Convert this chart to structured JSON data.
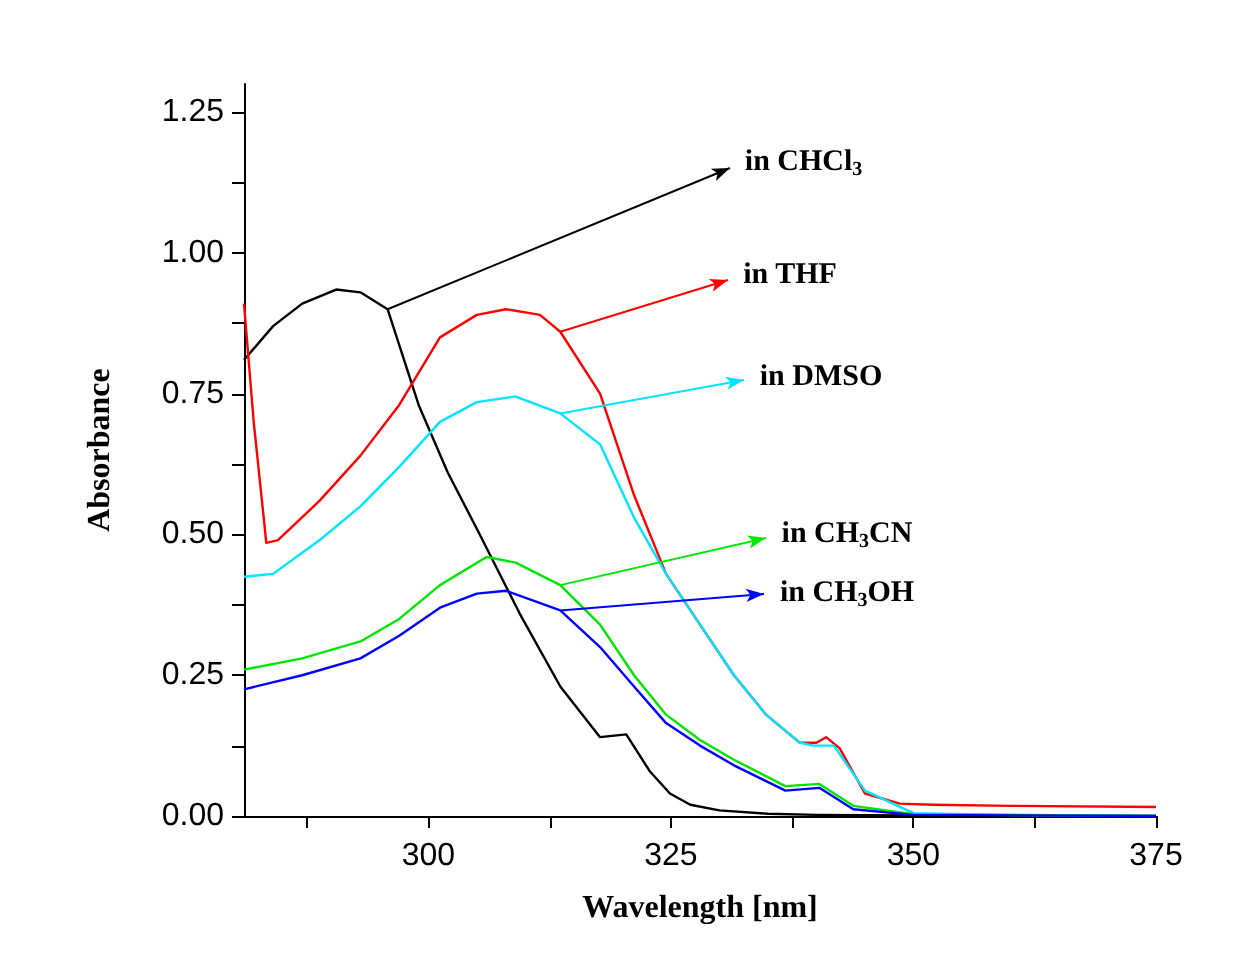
{
  "chart_data": {
    "type": "line",
    "xlabel": "Wavelength [nm]",
    "ylabel": "Absorbance",
    "xlim": [
      281,
      375
    ],
    "xticks": [
      {
        "value": 287.5,
        "label": null
      },
      300,
      {
        "value": 312.5,
        "label": null
      },
      325,
      {
        "value": 337.5,
        "label": null
      },
      350,
      {
        "value": 362.5,
        "label": null
      },
      375
    ],
    "ylim": [
      0,
      1.3
    ],
    "yticks": [
      {
        "value": 0,
        "label": "0.00"
      },
      {
        "value": 0.125,
        "label": null
      },
      {
        "value": 0.25,
        "label": "0.25"
      },
      {
        "value": 0.375,
        "label": null
      },
      {
        "value": 0.5,
        "label": "0.50"
      },
      {
        "value": 0.625,
        "label": null
      },
      {
        "value": 0.75,
        "label": "0.75"
      },
      {
        "value": 0.875,
        "label": null
      },
      {
        "value": 1,
        "label": "1.00"
      },
      {
        "value": 1.125,
        "label": null
      },
      {
        "value": 1.25,
        "label": "1.25"
      }
    ],
    "grid": false,
    "legend": "right",
    "marker": "none",
    "line_style": "solid",
    "series": [
      {
        "name": "in CHCl$_{3}$",
        "color": "#000000",
        "x": [
          281,
          284,
          287,
          290.5,
          293,
          295.8,
          299,
          302,
          305.3,
          309.4,
          313.6,
          317.7,
          320.4,
          322.8,
          324.9,
          327,
          330,
          335,
          340,
          350,
          375
        ],
        "values": [
          0.81,
          0.87,
          0.91,
          0.935,
          0.93,
          0.9,
          0.73,
          0.61,
          0.5,
          0.36,
          0.23,
          0.14,
          0.145,
          0.08,
          0.04,
          0.02,
          0.01,
          0.004,
          0.002,
          0.001,
          0
        ]
      },
      {
        "name": "in THF",
        "color": "#ff0000",
        "x": [
          281,
          282,
          283.3,
          284.5,
          288.8,
          293,
          297,
          301.2,
          305,
          308,
          311.5,
          313.6,
          317.7,
          321.2,
          324.5,
          328,
          331.5,
          334.8,
          338.3,
          340,
          341,
          342.4,
          345,
          348.6,
          352,
          360,
          375
        ],
        "values": [
          0.91,
          0.7,
          0.485,
          0.49,
          0.56,
          0.64,
          0.73,
          0.85,
          0.89,
          0.9,
          0.89,
          0.86,
          0.75,
          0.57,
          0.43,
          0.34,
          0.25,
          0.18,
          0.13,
          0.13,
          0.14,
          0.12,
          0.04,
          0.022,
          0.02,
          0.018,
          0.016
        ]
      },
      {
        "name": "in DMSO",
        "color": "#00e5ff",
        "x": [
          281,
          284,
          288.8,
          293,
          297,
          301.2,
          305,
          309,
          313.6,
          317.7,
          321.2,
          324.5,
          328,
          331.5,
          334.8,
          338.3,
          339.7,
          341.8,
          345,
          350,
          360,
          375
        ],
        "values": [
          0.425,
          0.43,
          0.49,
          0.55,
          0.62,
          0.7,
          0.735,
          0.745,
          0.715,
          0.66,
          0.53,
          0.43,
          0.34,
          0.25,
          0.18,
          0.13,
          0.125,
          0.125,
          0.045,
          0.005,
          0.002,
          0
        ]
      },
      {
        "name": "in CH$_{3}$CN",
        "color": "#00e600",
        "x": [
          281,
          287,
          293,
          297,
          301.2,
          306,
          309,
          313.6,
          317.7,
          321.2,
          324.5,
          328,
          331.5,
          336.8,
          340.3,
          343.8,
          350,
          375
        ],
        "values": [
          0.26,
          0.28,
          0.31,
          0.35,
          0.41,
          0.46,
          0.45,
          0.41,
          0.34,
          0.25,
          0.18,
          0.135,
          0.1,
          0.053,
          0.057,
          0.018,
          0.003,
          0
        ]
      },
      {
        "name": "in CH$_{3}$OH",
        "color": "#0000ff",
        "x": [
          281,
          287,
          293,
          297,
          301.2,
          305,
          308,
          313.6,
          317.7,
          321.2,
          324.5,
          328,
          331.5,
          336.8,
          340.3,
          343.8,
          350,
          375
        ],
        "values": [
          0.225,
          0.25,
          0.28,
          0.32,
          0.37,
          0.395,
          0.4,
          0.365,
          0.3,
          0.23,
          0.165,
          0.125,
          0.09,
          0.045,
          0.05,
          0.012,
          0.002,
          0
        ]
      }
    ]
  }
}
